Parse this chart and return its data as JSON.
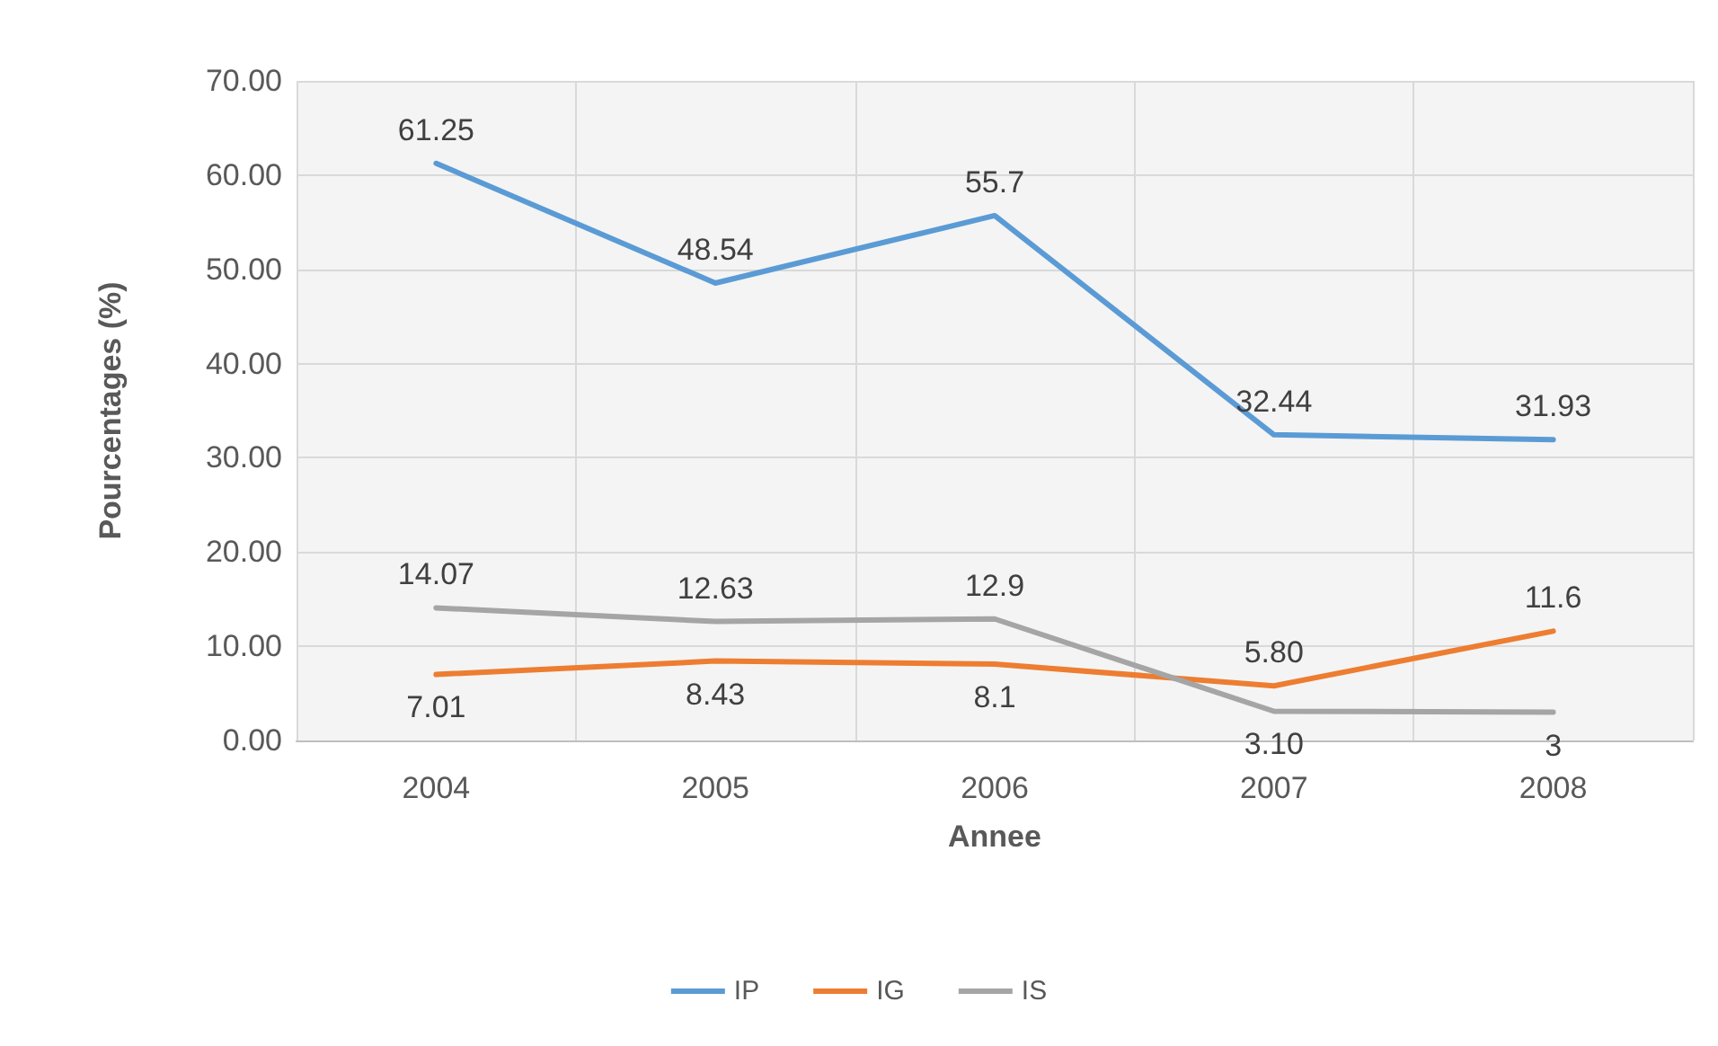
{
  "chart_data": {
    "type": "line",
    "xlabel": "Annee",
    "ylabel": "Pourcentages (%)",
    "categories": [
      "2004",
      "2005",
      "2006",
      "2007",
      "2008"
    ],
    "series": [
      {
        "name": "IP",
        "color": "#5b9bd5",
        "values": [
          61.25,
          48.54,
          55.7,
          32.44,
          31.93
        ],
        "value_labels": [
          "61.25",
          "48.54",
          "55.7",
          "32.44",
          "31.93"
        ]
      },
      {
        "name": "IG",
        "color": "#ed7d31",
        "values": [
          7.01,
          8.43,
          8.1,
          5.8,
          11.6
        ],
        "value_labels": [
          "7.01",
          "8.43",
          "8.1",
          "5.80",
          "11.6"
        ]
      },
      {
        "name": "IS",
        "color": "#a5a5a5",
        "values": [
          14.07,
          12.63,
          12.9,
          3.1,
          3
        ],
        "value_labels": [
          "14.07",
          "12.63",
          "12.9",
          "3.10",
          "3"
        ]
      }
    ],
    "ylim": [
      0,
      70
    ],
    "yticks": [
      {
        "value": 0,
        "label": "0.00"
      },
      {
        "value": 10,
        "label": "10.00"
      },
      {
        "value": 20,
        "label": "20.00"
      },
      {
        "value": 30,
        "label": "30.00"
      },
      {
        "value": 40,
        "label": "40.00"
      },
      {
        "value": 50,
        "label": "50.00"
      },
      {
        "value": 60,
        "label": "60.00"
      },
      {
        "value": 70,
        "label": "70.00"
      }
    ],
    "grid": true,
    "legend": "bottom",
    "marker": "none",
    "line_style": "solid"
  }
}
